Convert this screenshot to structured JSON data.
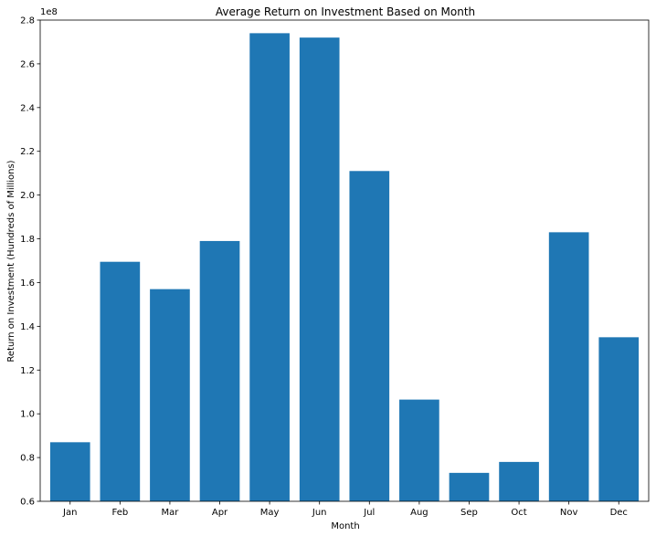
{
  "chart_data": {
    "type": "bar",
    "title": "Average Return on Investment Based on Month",
    "xlabel": "Month",
    "ylabel": "Return on Investment  (Hundreds of Millions)",
    "offset_label": "1e8",
    "categories": [
      "Jan",
      "Feb",
      "Mar",
      "Apr",
      "May",
      "Jun",
      "Jul",
      "Aug",
      "Sep",
      "Oct",
      "Nov",
      "Dec"
    ],
    "values": [
      0.87,
      1.695,
      1.57,
      1.79,
      2.74,
      2.72,
      2.11,
      1.065,
      0.73,
      0.78,
      1.83,
      1.35
    ],
    "ylim": [
      0.6,
      2.8
    ],
    "yticks": [
      "0.6",
      "0.8",
      "1.0",
      "1.2",
      "1.4",
      "1.6",
      "1.8",
      "2.0",
      "2.2",
      "2.4",
      "2.6",
      "2.8"
    ],
    "bar_color": "#1f77b4",
    "grid": false,
    "legend": "none"
  }
}
